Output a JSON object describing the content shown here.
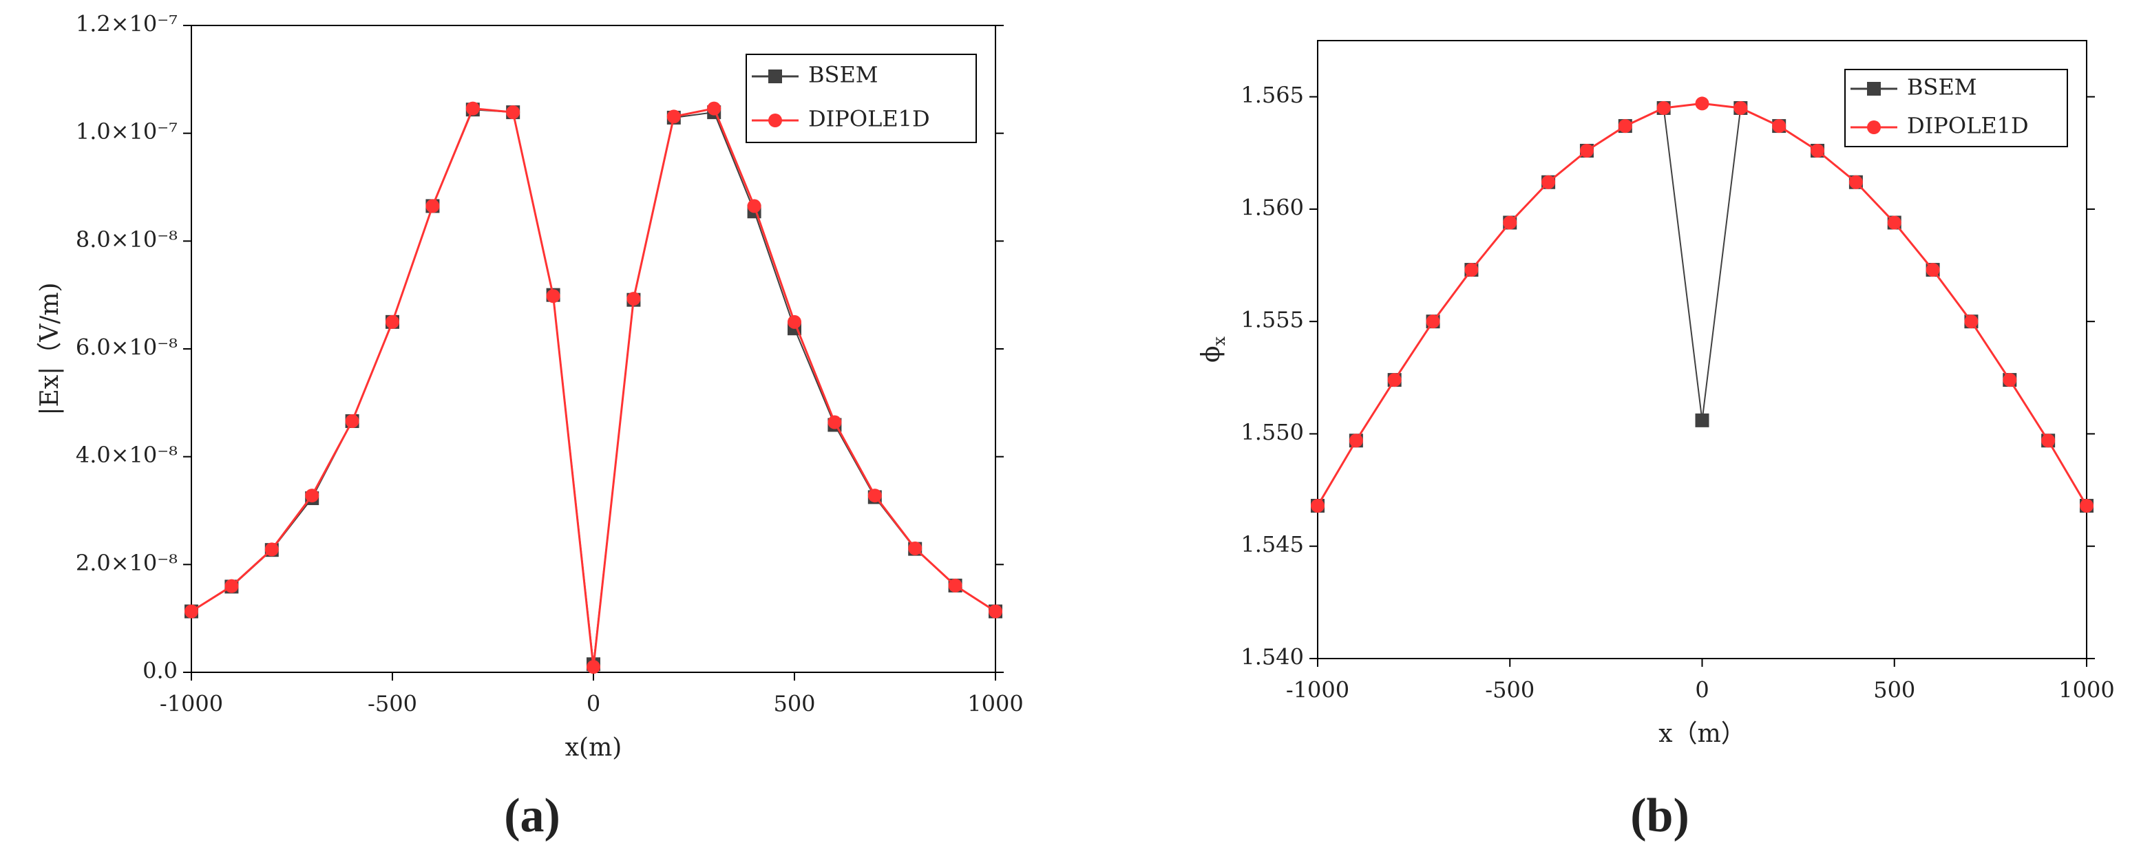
{
  "chart_data": [
    {
      "type": "line",
      "panel_label": "(a)",
      "x_label": "x(m)",
      "y_label": "|Ex|（V/m)",
      "x": [
        -1000,
        -900,
        -800,
        -700,
        -600,
        -500,
        -400,
        -300,
        -200,
        -100,
        0,
        100,
        200,
        300,
        400,
        500,
        600,
        700,
        800,
        900,
        1000
      ],
      "series": [
        {
          "name": "BSEM",
          "color": "#404040",
          "marker": "square",
          "values": [
            1.13e-08,
            1.59e-08,
            2.27e-08,
            3.23e-08,
            4.66e-08,
            6.5e-08,
            8.65e-08,
            1.044e-07,
            1.039e-07,
            7e-08,
            1.5e-09,
            6.91e-08,
            1.029e-07,
            1.039e-07,
            8.55e-08,
            6.38e-08,
            4.59e-08,
            3.25e-08,
            2.29e-08,
            1.61e-08,
            1.13e-08
          ]
        },
        {
          "name": "DIPOLE1D",
          "color": "#ff3333",
          "marker": "circle",
          "values": [
            1.13e-08,
            1.6e-08,
            2.28e-08,
            3.28e-08,
            4.66e-08,
            6.5e-08,
            8.65e-08,
            1.046e-07,
            1.039e-07,
            6.98e-08,
            1e-09,
            6.93e-08,
            1.031e-07,
            1.046e-07,
            8.65e-08,
            6.5e-08,
            4.64e-08,
            3.28e-08,
            2.3e-08,
            1.61e-08,
            1.13e-08
          ]
        }
      ],
      "xlim": [
        -1000,
        1000
      ],
      "xticks": [
        -1000,
        -500,
        0,
        500,
        1000
      ],
      "ylim": [
        0,
        1.2e-07
      ],
      "yticks": [
        {
          "value": 0,
          "label": "0.0"
        },
        {
          "value": 2e-08,
          "label": "2.0×10⁻⁸"
        },
        {
          "value": 4e-08,
          "label": "4.0×10⁻⁸"
        },
        {
          "value": 6e-08,
          "label": "6.0×10⁻⁸"
        },
        {
          "value": 8e-08,
          "label": "8.0×10⁻⁸"
        },
        {
          "value": 1e-07,
          "label": "1.0×10⁻⁷"
        },
        {
          "value": 1.2e-07,
          "label": "1.2×10⁻⁷"
        }
      ],
      "legend": "upper right"
    },
    {
      "type": "line",
      "panel_label": "(b)",
      "x_label": "x（m）",
      "y_label": "ϕ",
      "y_label_subscript": "x",
      "x": [
        -1000,
        -900,
        -800,
        -700,
        -600,
        -500,
        -400,
        -300,
        -200,
        -100,
        0,
        100,
        200,
        300,
        400,
        500,
        600,
        700,
        800,
        900,
        1000
      ],
      "series": [
        {
          "name": "BSEM",
          "color": "#404040",
          "marker": "square",
          "values": [
            1.5468,
            1.5497,
            1.5524,
            1.555,
            1.5573,
            1.5594,
            1.5612,
            1.5626,
            1.5637,
            1.5645,
            1.5506,
            1.5645,
            1.5637,
            1.5626,
            1.5612,
            1.5594,
            1.5573,
            1.555,
            1.5524,
            1.5497,
            1.5468
          ]
        },
        {
          "name": "DIPOLE1D",
          "color": "#ff3333",
          "marker": "circle",
          "values": [
            1.5468,
            1.5497,
            1.5524,
            1.555,
            1.5573,
            1.5594,
            1.5612,
            1.5626,
            1.5637,
            1.5645,
            1.5647,
            1.5645,
            1.5637,
            1.5626,
            1.5612,
            1.5594,
            1.5573,
            1.555,
            1.5524,
            1.5497,
            1.5468
          ]
        }
      ],
      "xlim": [
        -1000,
        1000
      ],
      "xticks": [
        -1000,
        -500,
        0,
        500,
        1000
      ],
      "ylim": [
        1.54,
        1.5675
      ],
      "yticks": [
        {
          "value": 1.54,
          "label": "1.540"
        },
        {
          "value": 1.545,
          "label": "1.545"
        },
        {
          "value": 1.55,
          "label": "1.550"
        },
        {
          "value": 1.555,
          "label": "1.555"
        },
        {
          "value": 1.56,
          "label": "1.560"
        },
        {
          "value": 1.565,
          "label": "1.565"
        }
      ],
      "legend": "upper right"
    }
  ]
}
